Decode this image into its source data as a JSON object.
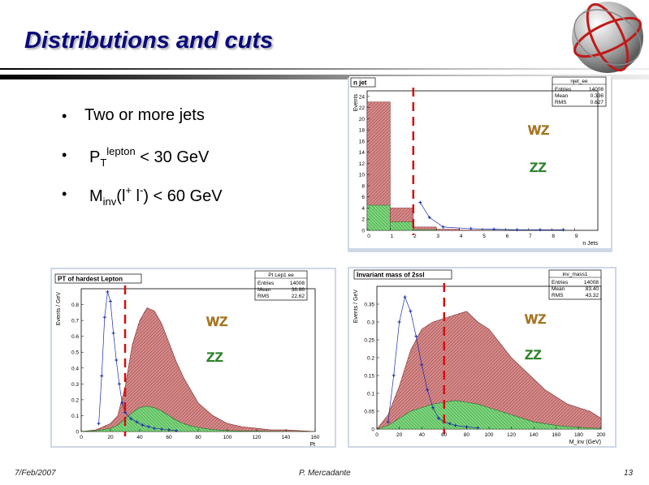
{
  "slide": {
    "title": "Distributions and cuts",
    "date": "7/Feb/2007",
    "author": "P. Mercadante",
    "page_number": "13"
  },
  "bullets": {
    "b1": "Two or more jets",
    "b2_main": "P",
    "b2_sub": "T",
    "b2_sup": "lepton",
    "b2_tail": " < 30 GeV",
    "b3_main": "M",
    "b3_sub": "inv",
    "b3_open": "(l",
    "b3_sup1": "+",
    "b3_mid": " l",
    "b3_sup2": "-",
    "b3_tail": ") < 60 GeV"
  },
  "colors": {
    "wz_fill": "#d48a8a",
    "zz_fill": "#7fd57f",
    "cut_line": "#d01010",
    "label_wz": "#b07a18",
    "label_zz": "#2a8a2a",
    "points": "#1a2aa8"
  },
  "chart_data": [
    {
      "id": "njet",
      "type": "bar",
      "title": "n jet",
      "stats": {
        "name": "njet_ee",
        "entries_label": "Entries",
        "entries": "14008",
        "mean_label": "Mean",
        "mean": "0.336",
        "rms_label": "RMS",
        "rms": "0.627"
      },
      "xlabel": "n Jets",
      "ylabel": "Events",
      "xlim": [
        0,
        10
      ],
      "ylim": [
        0,
        25
      ],
      "x_ticks": [
        "0",
        "1",
        "2",
        "3",
        "4",
        "5",
        "6",
        "7",
        "8",
        "9"
      ],
      "y_ticks": [
        "0",
        "2",
        "4",
        "6",
        "8",
        "10",
        "12",
        "14",
        "16",
        "18",
        "20",
        "22",
        "24"
      ],
      "bins": [
        0,
        1,
        2,
        3,
        4,
        5,
        6,
        7,
        8,
        9
      ],
      "wz": [
        23,
        4,
        0.6,
        0.2,
        0.05,
        0,
        0,
        0,
        0,
        0
      ],
      "zz": [
        4.5,
        1.5,
        0.1,
        0,
        0,
        0,
        0,
        0,
        0,
        0
      ],
      "points_x": [
        2.3,
        2.7,
        3.3,
        4.5,
        5.5,
        6.5,
        7.5,
        8.5
      ],
      "points_y": [
        5.0,
        2.3,
        0.6,
        0.3,
        0.2,
        0.1,
        0.1,
        0.1
      ],
      "cut": 2,
      "label_wz": "WZ",
      "label_zz": "ZZ"
    },
    {
      "id": "pt",
      "type": "area",
      "title": "PT of hardest Lepton",
      "stats": {
        "name": "Pt Lep1 ee",
        "entries_label": "Entries",
        "entries": "14008",
        "mean_label": "Mean",
        "mean": "36.86",
        "rms_label": "RMS",
        "rms": "22.62"
      },
      "xlabel": "Pt",
      "ylabel": "Events / GeV",
      "xlim": [
        0,
        160
      ],
      "ylim": [
        0,
        0.9
      ],
      "x_ticks": [
        "0",
        "20",
        "40",
        "60",
        "80",
        "100",
        "120",
        "140",
        "160"
      ],
      "y_ticks": [
        "0",
        "0.1",
        "0.2",
        "0.3",
        "0.4",
        "0.5",
        "0.6",
        "0.7",
        "0.8"
      ],
      "x": [
        0,
        10,
        20,
        25,
        30,
        35,
        40,
        45,
        50,
        55,
        60,
        65,
        70,
        75,
        80,
        90,
        100,
        110,
        120,
        130,
        140,
        150,
        160
      ],
      "wz": [
        0,
        0.01,
        0.05,
        0.1,
        0.28,
        0.55,
        0.7,
        0.78,
        0.76,
        0.68,
        0.56,
        0.44,
        0.34,
        0.26,
        0.18,
        0.1,
        0.05,
        0.03,
        0.02,
        0.01,
        0.01,
        0.005,
        0
      ],
      "zz": [
        0,
        0.005,
        0.02,
        0.04,
        0.08,
        0.12,
        0.15,
        0.16,
        0.15,
        0.13,
        0.1,
        0.07,
        0.05,
        0.035,
        0.025,
        0.012,
        0.006,
        0.003,
        0.002,
        0.001,
        0,
        0,
        0
      ],
      "points_x": [
        12,
        14,
        16,
        18,
        20,
        22,
        24,
        26,
        28,
        30,
        34,
        38,
        42,
        46,
        50,
        55,
        60,
        65
      ],
      "points_y": [
        0.05,
        0.35,
        0.72,
        0.88,
        0.82,
        0.62,
        0.45,
        0.3,
        0.18,
        0.12,
        0.08,
        0.06,
        0.04,
        0.03,
        0.02,
        0.015,
        0.01,
        0.005
      ],
      "cut": 30,
      "label_wz": "WZ",
      "label_zz": "ZZ"
    },
    {
      "id": "minv",
      "type": "area",
      "title": "Invariant mass of 2ssl",
      "stats": {
        "name": "inv_mass1",
        "entries_label": "Entries",
        "entries": "14008",
        "mean_label": "Mean",
        "mean": "83.40",
        "rms_label": "RMS",
        "rms": "43.32"
      },
      "xlabel": "M_inv (GeV)",
      "ylabel": "Events / GeV",
      "xlim": [
        0,
        200
      ],
      "ylim": [
        0,
        0.4
      ],
      "x_ticks": [
        "0",
        "20",
        "40",
        "60",
        "80",
        "100",
        "120",
        "140",
        "160",
        "180",
        "200"
      ],
      "y_ticks": [
        "0",
        "0.05",
        "0.1",
        "0.15",
        "0.2",
        "0.25",
        "0.3",
        "0.35"
      ],
      "x": [
        0,
        10,
        20,
        30,
        40,
        50,
        60,
        70,
        80,
        90,
        100,
        110,
        120,
        130,
        140,
        150,
        160,
        170,
        180,
        190,
        200
      ],
      "wz": [
        0,
        0.04,
        0.12,
        0.22,
        0.28,
        0.3,
        0.31,
        0.32,
        0.33,
        0.3,
        0.28,
        0.24,
        0.2,
        0.17,
        0.14,
        0.11,
        0.09,
        0.07,
        0.06,
        0.05,
        0.03
      ],
      "zz": [
        0,
        0.01,
        0.03,
        0.05,
        0.06,
        0.07,
        0.075,
        0.08,
        0.075,
        0.07,
        0.06,
        0.05,
        0.04,
        0.03,
        0.02,
        0.015,
        0.01,
        0.007,
        0.005,
        0.003,
        0.002
      ],
      "points_x": [
        10,
        15,
        20,
        25,
        30,
        35,
        40,
        45,
        50,
        55,
        60,
        65,
        70,
        80,
        90
      ],
      "points_y": [
        0.02,
        0.15,
        0.3,
        0.37,
        0.33,
        0.26,
        0.18,
        0.11,
        0.06,
        0.03,
        0.02,
        0.015,
        0.01,
        0.006,
        0.003
      ],
      "cut": 60,
      "label_wz": "WZ",
      "label_zz": "ZZ"
    }
  ]
}
